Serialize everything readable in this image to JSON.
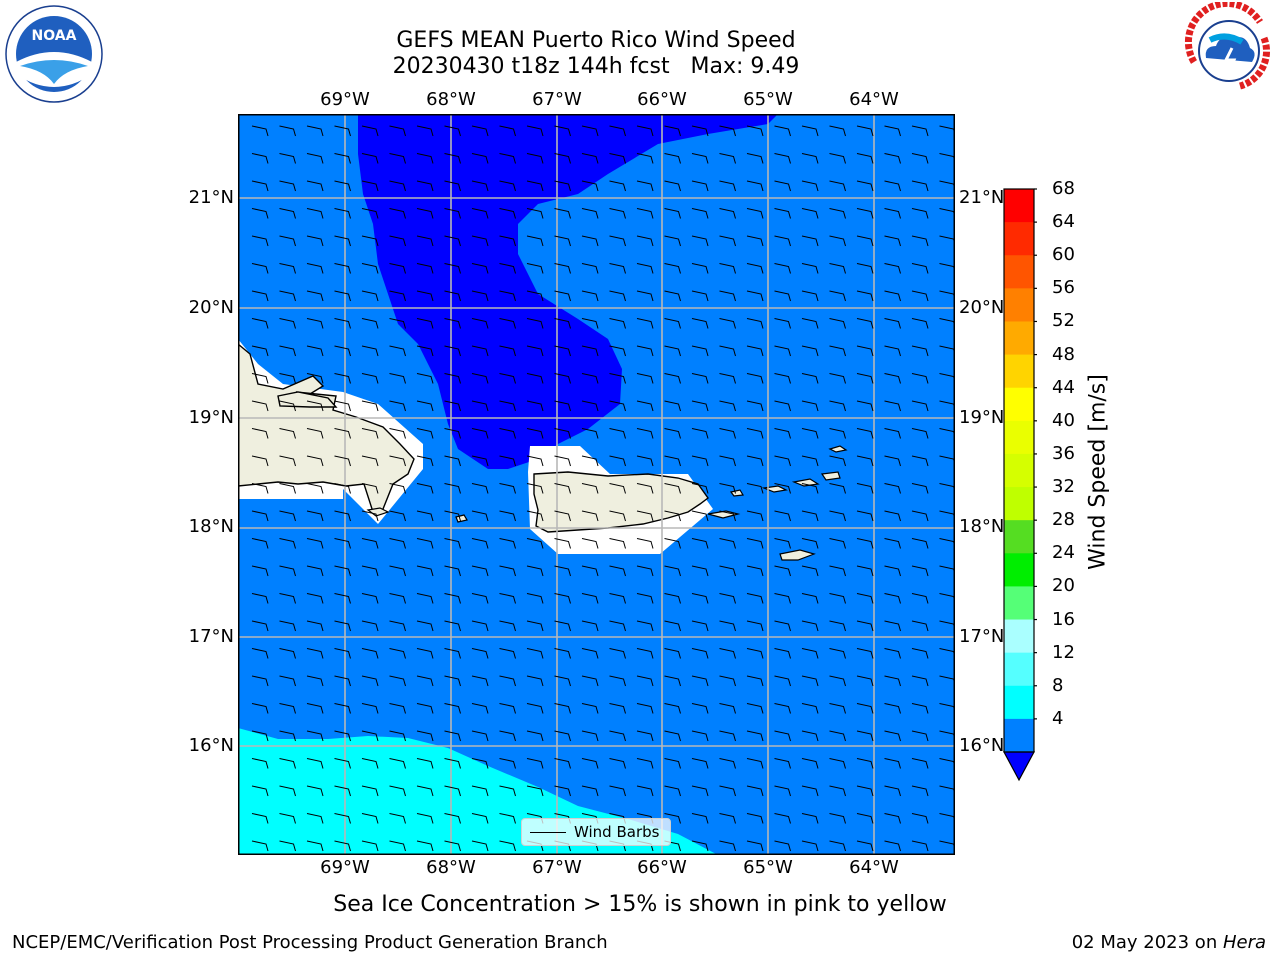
{
  "title": {
    "line1": "GEFS MEAN Puerto Rico Wind Speed",
    "line2": "20230430 t18z 144h fcst   Max: 9.49"
  },
  "logos": {
    "left": {
      "name": "noaa-logo",
      "text": "NOAA"
    },
    "right": {
      "name": "nws-logo",
      "text": "NATIONAL WEATHER SERVICE"
    }
  },
  "map": {
    "lon_labels": [
      "69°W",
      "68°W",
      "67°W",
      "66°W",
      "65°W",
      "64°W"
    ],
    "lat_labels": [
      "21°N",
      "20°N",
      "19°N",
      "18°N",
      "17°N",
      "16°N"
    ],
    "extent": {
      "lon_min": -70.0,
      "lon_max": -63.25,
      "lat_min": 15.0,
      "lat_max": 21.75
    },
    "colors": {
      "land": "#efefdf",
      "ocean_base": "#0080ff",
      "low_wind": "#0000ff",
      "mid_wind": "#00ffff",
      "masked": "#ffffff"
    }
  },
  "colorbar": {
    "ticks": [
      "68",
      "64",
      "60",
      "56",
      "52",
      "48",
      "44",
      "40",
      "36",
      "32",
      "28",
      "24",
      "20",
      "16",
      "12",
      "8",
      "4"
    ],
    "label": "Wind Speed [m/s]",
    "colors": [
      "#ff0000",
      "#ff2a00",
      "#ff5500",
      "#ff8000",
      "#ffaa00",
      "#ffd400",
      "#ffff00",
      "#eaff00",
      "#d5ff00",
      "#bfff00",
      "#55dd22",
      "#00ee00",
      "#55ff77",
      "#aaffff",
      "#55ffff",
      "#00ffff",
      "#0080ff"
    ],
    "under_color": "#0000ff"
  },
  "legend": {
    "label": "Wind Barbs"
  },
  "footer": {
    "note": "Sea Ice Concentration > 15% is shown in pink to yellow",
    "credit": "NCEP/EMC/Verification Post Processing Product Generation Branch",
    "date": "02 May 2023 on ",
    "host": "Hera"
  }
}
